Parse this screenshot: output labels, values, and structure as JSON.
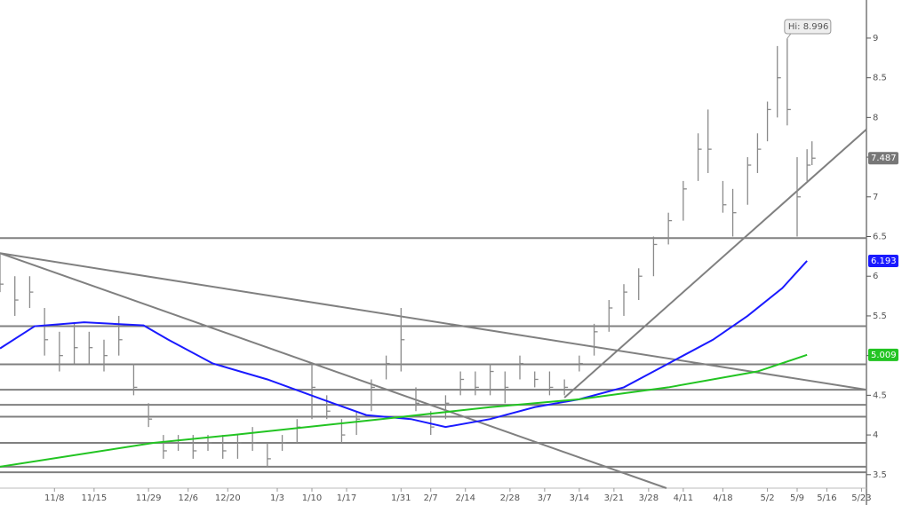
{
  "chart_data": {
    "type": "ohlc",
    "annotation": "Hi: 8.996",
    "bar_color": "#8a8a8a",
    "x": [
      0,
      3,
      6,
      9,
      12,
      15,
      18,
      21,
      24,
      27,
      30,
      33,
      36,
      39,
      42,
      45,
      48,
      51,
      54,
      57,
      60,
      63,
      66,
      69,
      72,
      75,
      78,
      81,
      84,
      87,
      90,
      93,
      96,
      99,
      102,
      105,
      108,
      111,
      114,
      117,
      120,
      123,
      126,
      129,
      132,
      135,
      138,
      141,
      143,
      146,
      148,
      151,
      153,
      155,
      157,
      159,
      161,
      163,
      164
    ],
    "high": [
      6.3,
      6.0,
      6.0,
      5.6,
      5.3,
      5.4,
      5.3,
      5.2,
      5.5,
      4.9,
      4.4,
      4.0,
      4.0,
      4.0,
      4.0,
      4.0,
      4.0,
      4.1,
      3.9,
      4.0,
      4.2,
      4.9,
      4.5,
      4.2,
      4.3,
      4.7,
      5.0,
      5.6,
      4.6,
      4.3,
      4.5,
      4.8,
      4.8,
      4.9,
      4.8,
      5.0,
      4.8,
      4.8,
      4.7,
      5.0,
      5.4,
      5.7,
      5.9,
      6.1,
      6.5,
      6.8,
      7.2,
      7.8,
      8.1,
      7.2,
      7.1,
      7.5,
      7.8,
      8.2,
      8.9,
      8.996,
      7.5,
      7.6,
      7.7
    ],
    "low": [
      5.8,
      5.5,
      5.6,
      5.0,
      4.8,
      4.9,
      4.9,
      4.8,
      5.0,
      4.5,
      4.1,
      3.7,
      3.8,
      3.7,
      3.8,
      3.7,
      3.7,
      3.8,
      3.6,
      3.8,
      3.9,
      4.2,
      4.2,
      3.9,
      4.0,
      4.3,
      4.7,
      4.8,
      4.3,
      4.0,
      4.2,
      4.5,
      4.5,
      4.5,
      4.4,
      4.7,
      4.6,
      4.5,
      4.5,
      4.8,
      5.0,
      5.3,
      5.5,
      5.7,
      6.0,
      6.4,
      6.7,
      7.2,
      7.3,
      6.8,
      6.5,
      6.9,
      7.3,
      7.7,
      8.0,
      7.9,
      6.5,
      7.2,
      7.4
    ],
    "close": [
      5.9,
      5.7,
      5.8,
      5.2,
      5.0,
      5.1,
      5.1,
      5.0,
      5.2,
      4.6,
      4.2,
      3.8,
      3.9,
      3.8,
      3.9,
      3.8,
      3.9,
      3.9,
      3.7,
      3.9,
      4.1,
      4.6,
      4.3,
      4.0,
      4.2,
      4.6,
      4.9,
      5.2,
      4.4,
      4.1,
      4.4,
      4.7,
      4.6,
      4.8,
      4.6,
      4.9,
      4.7,
      4.6,
      4.6,
      4.9,
      5.3,
      5.6,
      5.8,
      6.0,
      6.4,
      6.7,
      7.1,
      7.6,
      7.6,
      6.9,
      6.8,
      7.4,
      7.6,
      8.1,
      8.5,
      8.1,
      7.0,
      7.4,
      7.487
    ],
    "moving_averages": [
      {
        "color": "#1a1aff",
        "x": [
          0,
          7,
          17,
          29,
          34,
          43,
          54,
          65,
          74,
          83,
          90,
          99,
          108,
          117,
          126,
          135,
          144,
          151,
          158,
          163
        ],
        "values": [
          5.09,
          5.37,
          5.42,
          5.38,
          5.2,
          4.9,
          4.7,
          4.45,
          4.25,
          4.2,
          4.1,
          4.2,
          4.35,
          4.45,
          4.6,
          4.9,
          5.2,
          5.5,
          5.85,
          6.193
        ]
      },
      {
        "color": "#22c422",
        "x": [
          0,
          31,
          47,
          77,
          99,
          117,
          135,
          153,
          163
        ],
        "values": [
          3.6,
          3.9,
          4.0,
          4.2,
          4.35,
          4.45,
          4.6,
          4.8,
          5.009
        ]
      }
    ],
    "levels": [
      6.48,
      5.37,
      4.89,
      4.57,
      4.38,
      4.23,
      3.9,
      3.6,
      3.53
    ],
    "trendlines": [
      {
        "x": [
          0,
          175
        ],
        "y": [
          6.29,
          4.57
        ]
      },
      {
        "x": [
          0,
          134.6
        ],
        "y": [
          6.29,
          3.33
        ]
      },
      {
        "x": [
          114,
          175
        ],
        "y": [
          4.47,
          7.85
        ]
      }
    ],
    "line_color": "#808080",
    "xlim": [
      0,
      175
    ],
    "ylim": [
      3.33,
      9.48
    ],
    "yticks": [
      3.5,
      4,
      4.5,
      5,
      5.5,
      6,
      6.5,
      7,
      7.5,
      8,
      8.5,
      9
    ],
    "xticks": [
      {
        "value": 11,
        "label": "11/8"
      },
      {
        "value": 19,
        "label": "11/15"
      },
      {
        "value": 30,
        "label": "11/29"
      },
      {
        "value": 38,
        "label": "12/6"
      },
      {
        "value": 46,
        "label": "12/20"
      },
      {
        "value": 56,
        "label": "1/3"
      },
      {
        "value": 63,
        "label": "1/10"
      },
      {
        "value": 70,
        "label": "1/17"
      },
      {
        "value": 81,
        "label": "1/31"
      },
      {
        "value": 87,
        "label": "2/7"
      },
      {
        "value": 94,
        "label": "2/14"
      },
      {
        "value": 103,
        "label": "2/28"
      },
      {
        "value": 110,
        "label": "3/7"
      },
      {
        "value": 117,
        "label": "3/14"
      },
      {
        "value": 124,
        "label": "3/21"
      },
      {
        "value": 131,
        "label": "3/28"
      },
      {
        "value": 138,
        "label": "4/11"
      },
      {
        "value": 146,
        "label": "4/18"
      },
      {
        "value": 155,
        "label": "5/2"
      },
      {
        "value": 161,
        "label": "5/9"
      },
      {
        "value": 167,
        "label": "5/16"
      },
      {
        "value": 174,
        "label": "5/23"
      }
    ]
  }
}
